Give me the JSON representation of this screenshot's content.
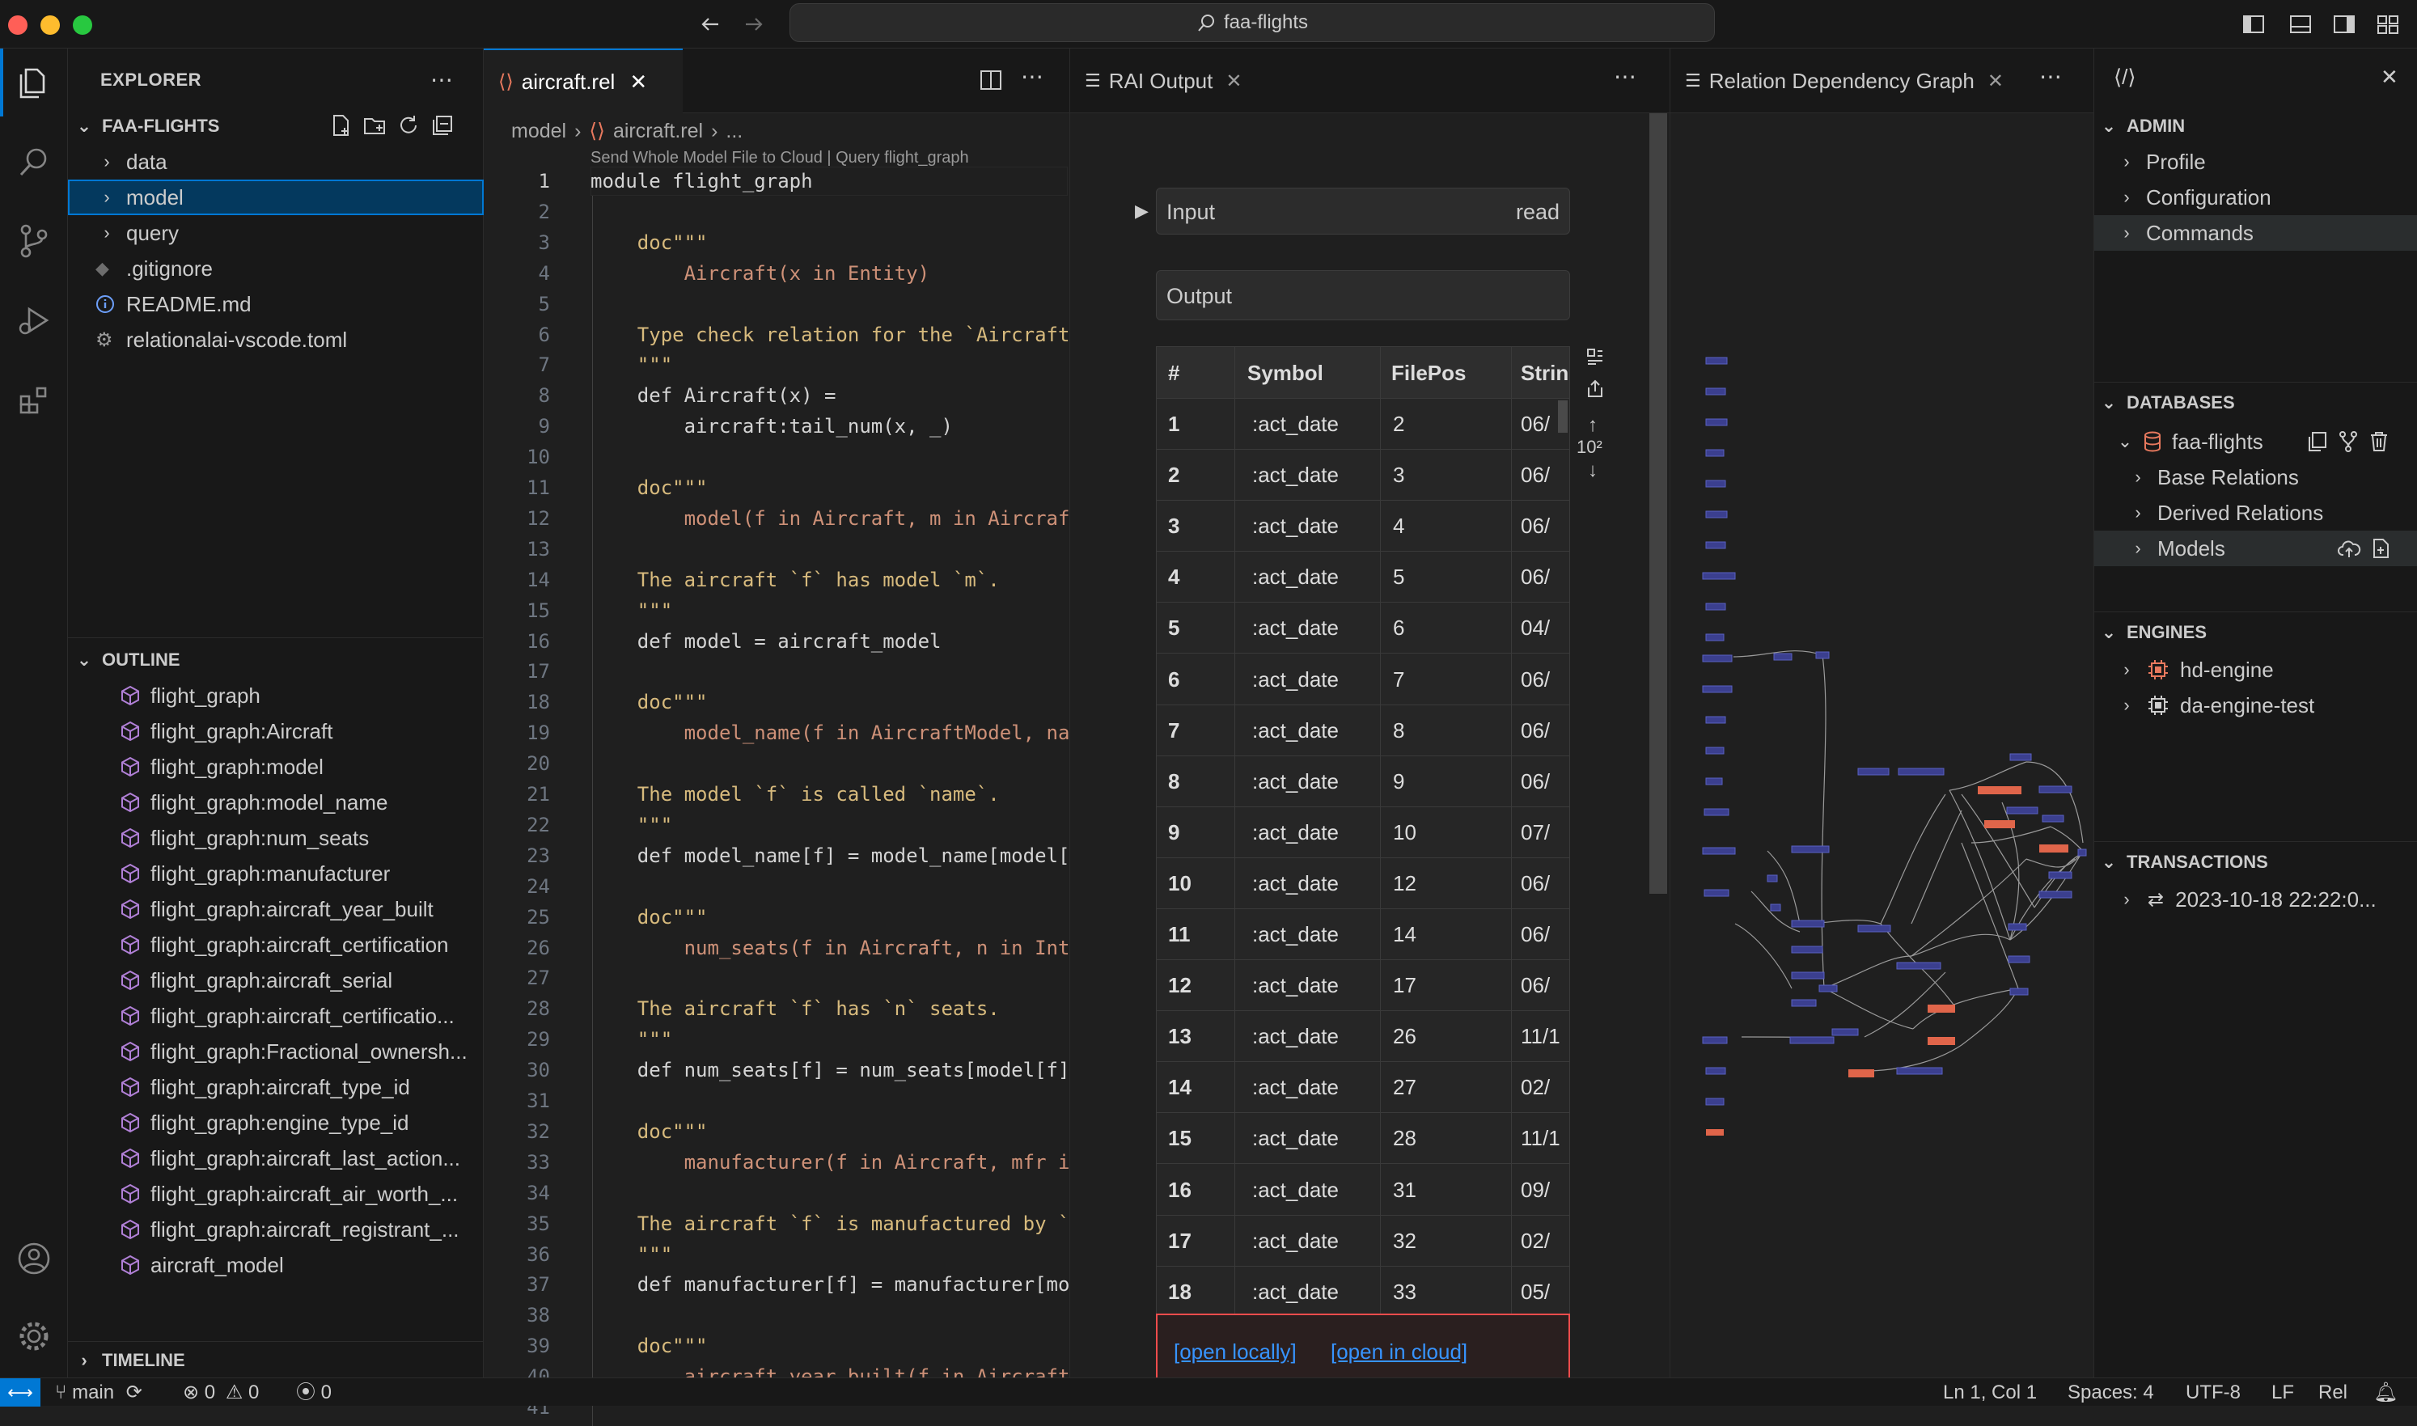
{
  "titlebar": {
    "search_text": "faa-flights"
  },
  "explorer": {
    "header": "EXPLORER",
    "workspace": "FAA-FLIGHTS",
    "items": [
      {
        "label": "data"
      },
      {
        "label": "model"
      },
      {
        "label": "query"
      },
      {
        "label": ".gitignore"
      },
      {
        "label": "README.md"
      },
      {
        "label": "relationalai-vscode.toml"
      }
    ]
  },
  "outline": {
    "header": "OUTLINE",
    "items": [
      "flight_graph",
      "flight_graph:Aircraft",
      "flight_graph:model",
      "flight_graph:model_name",
      "flight_graph:num_seats",
      "flight_graph:manufacturer",
      "flight_graph:aircraft_year_built",
      "flight_graph:aircraft_certification",
      "flight_graph:aircraft_serial",
      "flight_graph:aircraft_certificatio...",
      "flight_graph:Fractional_ownersh...",
      "flight_graph:aircraft_type_id",
      "flight_graph:engine_type_id",
      "flight_graph:aircraft_last_action...",
      "flight_graph:aircraft_air_worth_...",
      "flight_graph:aircraft_registrant_...",
      "aircraft_model"
    ]
  },
  "timeline": {
    "header": "TIMELINE"
  },
  "editor": {
    "tab_label": "aircraft.rel",
    "breadcrumb": [
      "model",
      "aircraft.rel",
      "..."
    ],
    "codelens": "Send Whole Model File to Cloud | Query flight_graph",
    "lines": [
      {
        "n": "1",
        "code": "module flight_graph"
      },
      {
        "n": "2",
        "code": ""
      },
      {
        "n": "3",
        "code": "    doc\"\"\""
      },
      {
        "n": "4",
        "code": "        Aircraft(x in Entity)"
      },
      {
        "n": "5",
        "code": ""
      },
      {
        "n": "6",
        "code": "    Type check relation for the `Aircraft"
      },
      {
        "n": "7",
        "code": "    \"\"\""
      },
      {
        "n": "8",
        "code": "    def Aircraft(x) ="
      },
      {
        "n": "9",
        "code": "        aircraft:tail_num(x, _)"
      },
      {
        "n": "10",
        "code": ""
      },
      {
        "n": "11",
        "code": "    doc\"\"\""
      },
      {
        "n": "12",
        "code": "        model(f in Aircraft, m in Aircraf"
      },
      {
        "n": "13",
        "code": ""
      },
      {
        "n": "14",
        "code": "    The aircraft `f` has model `m`."
      },
      {
        "n": "15",
        "code": "    \"\"\""
      },
      {
        "n": "16",
        "code": "    def model = aircraft_model"
      },
      {
        "n": "17",
        "code": ""
      },
      {
        "n": "18",
        "code": "    doc\"\"\""
      },
      {
        "n": "19",
        "code": "        model_name(f in AircraftModel, na"
      },
      {
        "n": "20",
        "code": ""
      },
      {
        "n": "21",
        "code": "    The model `f` is called `name`."
      },
      {
        "n": "22",
        "code": "    \"\"\""
      },
      {
        "n": "23",
        "code": "    def model_name[f] = model_name[model["
      },
      {
        "n": "24",
        "code": ""
      },
      {
        "n": "25",
        "code": "    doc\"\"\""
      },
      {
        "n": "26",
        "code": "        num_seats(f in Aircraft, n in Int"
      },
      {
        "n": "27",
        "code": ""
      },
      {
        "n": "28",
        "code": "    The aircraft `f` has `n` seats."
      },
      {
        "n": "29",
        "code": "    \"\"\""
      },
      {
        "n": "30",
        "code": "    def num_seats[f] = num_seats[model[f]"
      },
      {
        "n": "31",
        "code": ""
      },
      {
        "n": "32",
        "code": "    doc\"\"\""
      },
      {
        "n": "33",
        "code": "        manufacturer(f in Aircraft, mfr i"
      },
      {
        "n": "34",
        "code": ""
      },
      {
        "n": "35",
        "code": "    The aircraft `f` is manufactured by `"
      },
      {
        "n": "36",
        "code": "    \"\"\""
      },
      {
        "n": "37",
        "code": "    def manufacturer[f] = manufacturer[mo"
      },
      {
        "n": "38",
        "code": ""
      },
      {
        "n": "39",
        "code": "    doc\"\"\""
      },
      {
        "n": "40",
        "code": "        aircraft_year_built(f in Aircraft"
      },
      {
        "n": "41",
        "code": ""
      }
    ]
  },
  "rai": {
    "tab_label": "RAI Output",
    "input_label": "Input",
    "input_mode": "read",
    "output_label": "Output",
    "columns": [
      "#",
      "Symbol",
      "FilePos",
      "Strin"
    ],
    "rows": [
      [
        "1",
        ":act_date",
        "2",
        "06/"
      ],
      [
        "2",
        ":act_date",
        "3",
        "06/"
      ],
      [
        "3",
        ":act_date",
        "4",
        "06/"
      ],
      [
        "4",
        ":act_date",
        "5",
        "06/"
      ],
      [
        "5",
        ":act_date",
        "6",
        "04/"
      ],
      [
        "6",
        ":act_date",
        "7",
        "06/"
      ],
      [
        "7",
        ":act_date",
        "8",
        "06/"
      ],
      [
        "8",
        ":act_date",
        "9",
        "06/"
      ],
      [
        "9",
        ":act_date",
        "10",
        "07/"
      ],
      [
        "10",
        ":act_date",
        "12",
        "06/"
      ],
      [
        "11",
        ":act_date",
        "14",
        "06/"
      ],
      [
        "12",
        ":act_date",
        "17",
        "06/"
      ],
      [
        "13",
        ":act_date",
        "26",
        "11/1"
      ],
      [
        "14",
        ":act_date",
        "27",
        "02/"
      ],
      [
        "15",
        ":act_date",
        "28",
        "11/1"
      ],
      [
        "16",
        ":act_date",
        "31",
        "09/"
      ],
      [
        "17",
        ":act_date",
        "32",
        "02/"
      ],
      [
        "18",
        ":act_date",
        "33",
        "05/"
      ]
    ],
    "page_label": "10²",
    "open_locally": "[open locally]",
    "open_in_cloud": "[open in cloud]"
  },
  "graph": {
    "tab_label": "Relation Dependency Graph"
  },
  "rightpanel": {
    "admin_header": "ADMIN",
    "admin_items": [
      "Profile",
      "Configuration",
      "Commands"
    ],
    "databases_header": "DATABASES",
    "database_name": "faa-flights",
    "database_children": [
      "Base Relations",
      "Derived Relations",
      "Models"
    ],
    "engines_header": "ENGINES",
    "engines": [
      "hd-engine",
      "da-engine-test"
    ],
    "transactions_header": "TRANSACTIONS",
    "transaction": "2023-10-18 22:22:0..."
  },
  "statusbar": {
    "branch": "main",
    "errors": "0",
    "warnings": "0",
    "ports": "0",
    "cursor": "Ln 1, Col 1",
    "spaces": "Spaces: 4",
    "encoding": "UTF-8",
    "eol": "LF",
    "language": "Rel"
  },
  "colors": {
    "accent": "#0078d4",
    "selection": "#04395e",
    "keyword": "#cc7c5c",
    "graph_node": "#3b3f8f",
    "graph_node_hot": "#e0654a",
    "link": "#3794ff",
    "danger_border": "#f14c4c"
  }
}
